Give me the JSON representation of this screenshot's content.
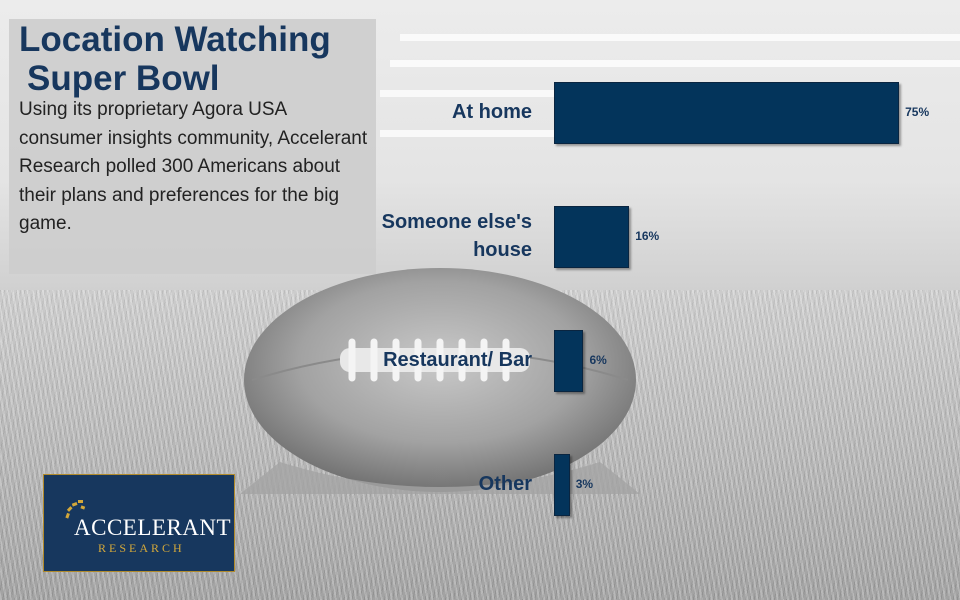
{
  "panel": {
    "title_line1": "Location Watching",
    "title_line2": "Super Bowl",
    "description": "Using its proprietary Agora USA consumer insights community, Accelerant Research polled 300 Americans about their plans and preferences for the big game."
  },
  "chart_data": {
    "type": "bar",
    "orientation": "horizontal",
    "categories": [
      "At home",
      "Someone else's house",
      "Restaurant/ Bar",
      "Other"
    ],
    "values": [
      75,
      16,
      6,
      3
    ],
    "value_labels": [
      "75%",
      "16%",
      "6%",
      "3%"
    ],
    "xlim": [
      0,
      80
    ],
    "title": "Location Watching Super Bowl",
    "xlabel": "",
    "ylabel": "",
    "grid": false,
    "legend": "none",
    "bar_color": "#03345b"
  },
  "logo": {
    "name": "ACCELERANT",
    "sub": "RESEARCH",
    "colors": {
      "background": "#17375e",
      "accent": "#d4a83a"
    }
  }
}
